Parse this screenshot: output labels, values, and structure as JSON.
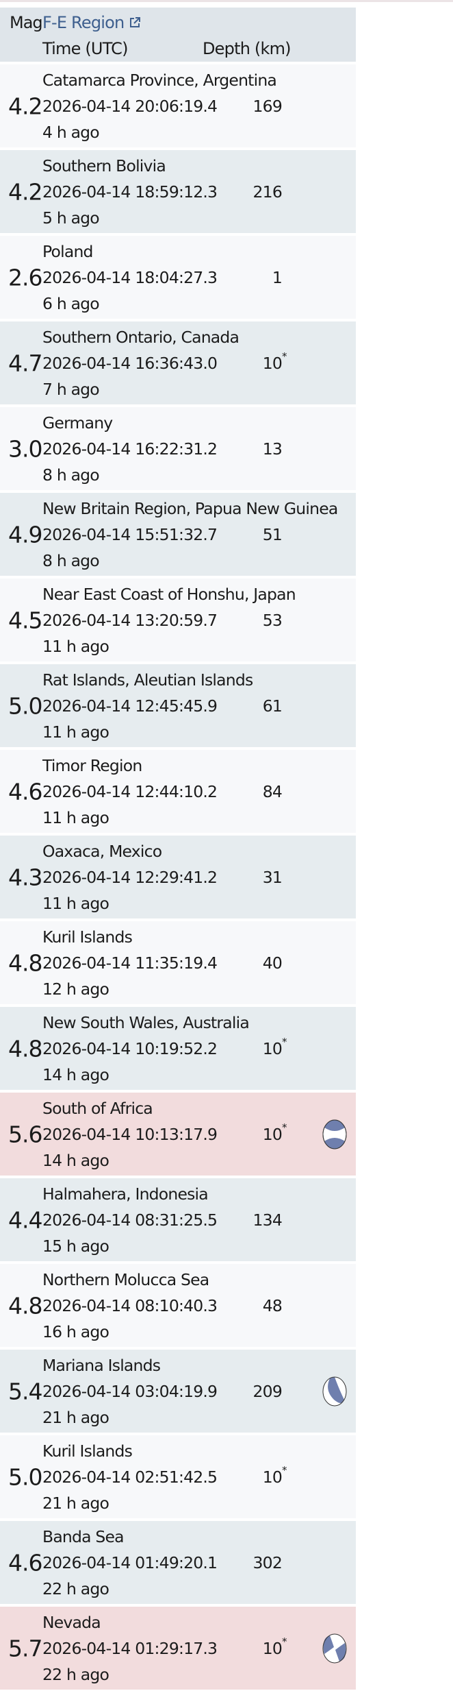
{
  "header": {
    "mag": "Mag",
    "region": "F-E Region",
    "region_link_icon": "external-link-icon",
    "time": "Time (UTC)",
    "depth": "Depth (km)"
  },
  "colors": {
    "header_bg": "#dfe5ea",
    "row_bg": "#f7f8fa",
    "row_alt_bg": "#e6ecef",
    "highlight_bg": "#f2dcdd",
    "link": "#3e5f8e",
    "beachball": "#6f7fae"
  },
  "events": [
    {
      "mag": "4.2",
      "region": "Catamarca Province, Argentina",
      "time": "2026-04-14 20:06:19.4",
      "depth": "169",
      "depth_flag": "",
      "ago": "4 h ago"
    },
    {
      "mag": "4.2",
      "region": "Southern Bolivia",
      "time": "2026-04-14 18:59:12.3",
      "depth": "216",
      "depth_flag": "",
      "ago": "5 h ago"
    },
    {
      "mag": "2.6",
      "region": "Poland",
      "time": "2026-04-14 18:04:27.3",
      "depth": "1",
      "depth_flag": "",
      "ago": "6 h ago"
    },
    {
      "mag": "4.7",
      "region": "Southern Ontario, Canada",
      "time": "2026-04-14 16:36:43.0",
      "depth": "10",
      "depth_flag": "*",
      "ago": "7 h ago"
    },
    {
      "mag": "3.0",
      "region": "Germany",
      "time": "2026-04-14 16:22:31.2",
      "depth": "13",
      "depth_flag": "",
      "ago": "8 h ago"
    },
    {
      "mag": "4.9",
      "region": "New Britain Region, Papua New Guinea",
      "time": "2026-04-14 15:51:32.7",
      "depth": "51",
      "depth_flag": "",
      "ago": "8 h ago"
    },
    {
      "mag": "4.5",
      "region": "Near East Coast of Honshu, Japan",
      "time": "2026-04-14 13:20:59.7",
      "depth": "53",
      "depth_flag": "",
      "ago": "11 h ago"
    },
    {
      "mag": "5.0",
      "region": "Rat Islands, Aleutian Islands",
      "time": "2026-04-14 12:45:45.9",
      "depth": "61",
      "depth_flag": "",
      "ago": "11 h ago"
    },
    {
      "mag": "4.6",
      "region": "Timor Region",
      "time": "2026-04-14 12:44:10.2",
      "depth": "84",
      "depth_flag": "",
      "ago": "11 h ago"
    },
    {
      "mag": "4.3",
      "region": "Oaxaca, Mexico",
      "time": "2026-04-14 12:29:41.2",
      "depth": "31",
      "depth_flag": "",
      "ago": "11 h ago"
    },
    {
      "mag": "4.8",
      "region": "Kuril Islands",
      "time": "2026-04-14 11:35:19.4",
      "depth": "40",
      "depth_flag": "",
      "ago": "12 h ago"
    },
    {
      "mag": "4.8",
      "region": "New South Wales, Australia",
      "time": "2026-04-14 10:19:52.2",
      "depth": "10",
      "depth_flag": "*",
      "ago": "14 h ago"
    },
    {
      "mag": "5.6",
      "region": "South of Africa",
      "time": "2026-04-14 10:13:17.9",
      "depth": "10",
      "depth_flag": "*",
      "ago": "14 h ago",
      "highlight": true,
      "beachball": "normal"
    },
    {
      "mag": "4.4",
      "region": "Halmahera, Indonesia",
      "time": "2026-04-14 08:31:25.5",
      "depth": "134",
      "depth_flag": "",
      "ago": "15 h ago"
    },
    {
      "mag": "4.8",
      "region": "Northern Molucca Sea",
      "time": "2026-04-14 08:10:40.3",
      "depth": "48",
      "depth_flag": "",
      "ago": "16 h ago"
    },
    {
      "mag": "5.4",
      "region": "Mariana Islands",
      "time": "2026-04-14 03:04:19.9",
      "depth": "209",
      "depth_flag": "",
      "ago": "21 h ago",
      "beachball": "oblique"
    },
    {
      "mag": "5.0",
      "region": "Kuril Islands",
      "time": "2026-04-14 02:51:42.5",
      "depth": "10",
      "depth_flag": "*",
      "ago": "21 h ago"
    },
    {
      "mag": "4.6",
      "region": "Banda Sea",
      "time": "2026-04-14 01:49:20.1",
      "depth": "302",
      "depth_flag": "",
      "ago": "22 h ago"
    },
    {
      "mag": "5.7",
      "region": "Nevada",
      "time": "2026-04-14 01:29:17.3",
      "depth": "10",
      "depth_flag": "*",
      "ago": "22 h ago",
      "highlight": true,
      "beachball": "strike-slip"
    }
  ]
}
